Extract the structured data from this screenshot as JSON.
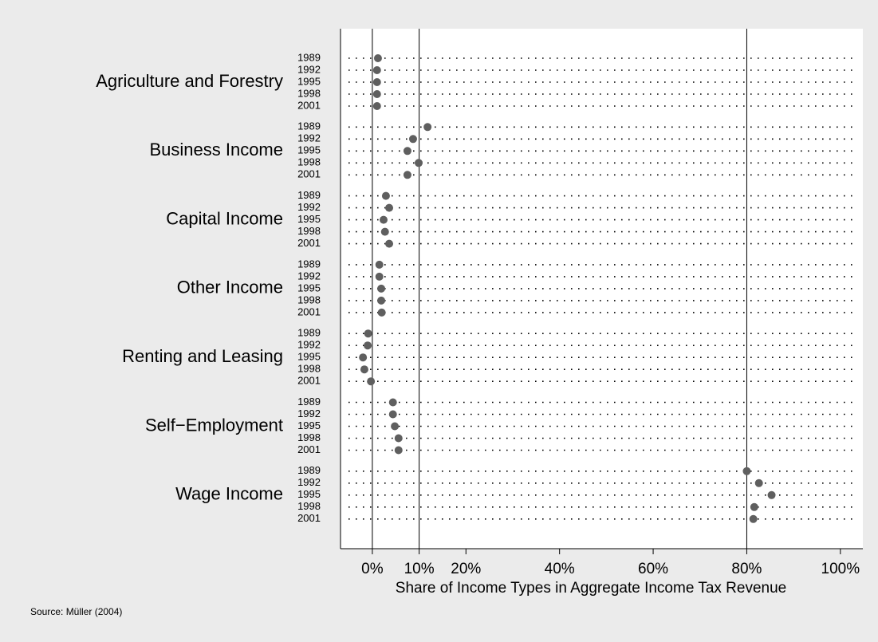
{
  "chart_data": {
    "type": "dot",
    "xlabel": "Share of Income Types in Aggregate Income Tax Revenue",
    "note": "Source: Müller (2004)",
    "color": "#5f5f5f",
    "xlim": [
      -6.8,
      104.8
    ],
    "xticks": [
      {
        "value": 0,
        "label": "0%"
      },
      {
        "value": 10,
        "label": "10%"
      },
      {
        "value": 20,
        "label": "20%"
      },
      {
        "value": 40,
        "label": "40%"
      },
      {
        "value": 60,
        "label": "60%"
      },
      {
        "value": 80,
        "label": "80%"
      },
      {
        "value": 100,
        "label": "100%"
      }
    ],
    "reference_lines": [
      0,
      10,
      80
    ],
    "groups": [
      {
        "name": "Agriculture and Forestry",
        "categories": [
          "1989",
          "1992",
          "1995",
          "1998",
          "2001"
        ],
        "values": [
          1.2,
          1.0,
          1.0,
          1.0,
          1.0
        ]
      },
      {
        "name": "Business Income",
        "categories": [
          "1989",
          "1992",
          "1995",
          "1998",
          "2001"
        ],
        "values": [
          11.8,
          8.7,
          7.5,
          9.9,
          7.5
        ]
      },
      {
        "name": "Capital Income",
        "categories": [
          "1989",
          "1992",
          "1995",
          "1998",
          "2001"
        ],
        "values": [
          2.9,
          3.6,
          2.4,
          2.7,
          3.6
        ]
      },
      {
        "name": "Other Income",
        "categories": [
          "1989",
          "1992",
          "1995",
          "1998",
          "2001"
        ],
        "values": [
          1.5,
          1.5,
          1.9,
          1.9,
          2.0
        ]
      },
      {
        "name": "Renting and Leasing",
        "categories": [
          "1989",
          "1992",
          "1995",
          "1998",
          "2001"
        ],
        "values": [
          -0.9,
          -1.0,
          -2.0,
          -1.7,
          -0.3
        ]
      },
      {
        "name": "Self−Employment",
        "categories": [
          "1989",
          "1992",
          "1995",
          "1998",
          "2001"
        ],
        "values": [
          4.4,
          4.4,
          4.8,
          5.6,
          5.6
        ]
      },
      {
        "name": "Wage Income",
        "categories": [
          "1989",
          "1992",
          "1995",
          "1998",
          "2001"
        ],
        "values": [
          80,
          82.6,
          85.3,
          81.6,
          81.4
        ]
      }
    ]
  }
}
